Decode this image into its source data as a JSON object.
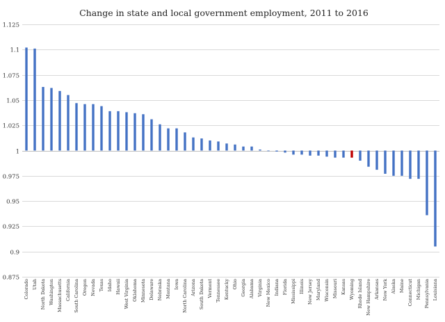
{
  "chart_data": {
    "type": "bar",
    "title": "Change in state and local government employment, 2011 to 2016",
    "xlabel": "",
    "ylabel": "",
    "ylim": [
      0.875,
      1.125
    ],
    "yticks": [
      0.875,
      0.9,
      0.925,
      0.95,
      0.975,
      1,
      1.025,
      1.05,
      1.075,
      1.1,
      1.125
    ],
    "ytick_labels": [
      "0.875",
      "0.9",
      "0.925",
      "0.95",
      "0.975",
      "1",
      "1.025",
      "1.05",
      "1.075",
      "1.1",
      "1.125"
    ],
    "baseline": 1,
    "grid": true,
    "legend": "none",
    "colors": {
      "default": "#4472C4",
      "highlight": "#C00000"
    },
    "highlight": [
      "Wyoming"
    ],
    "categories": [
      "Colorado",
      "Utah",
      "North Dakota",
      "Washington",
      "Massachusetts",
      "California",
      "South Carolina",
      "Oregon",
      "Nevada",
      "Texas",
      "Idaho",
      "Hawaii",
      "West Virginia",
      "Oklahoma",
      "Minnesota",
      "Delaware",
      "Nebraska",
      "Montana",
      "Iowa",
      "North Carolina",
      "Arizona",
      "South Dakota",
      "Vermont",
      "Tennessee",
      "Kentucky",
      "Ohio",
      "Georgia",
      "Alabama",
      "Virginia",
      "New Mexico",
      "Indiana",
      "Florida",
      "Mississippi",
      "Illinois",
      "New Jersey",
      "Maryland",
      "Wisconsin",
      "Missouri",
      "Kansas",
      "Wyoming",
      "Rhode Island",
      "New Hampshire",
      "Arkansas",
      "New York",
      "Alaska",
      "Maine",
      "Connecticut",
      "Michigan",
      "Pennsylvania",
      "Louisiana"
    ],
    "values": [
      1.102,
      1.101,
      1.063,
      1.062,
      1.059,
      1.055,
      1.047,
      1.046,
      1.046,
      1.044,
      1.039,
      1.039,
      1.038,
      1.037,
      1.036,
      1.031,
      1.026,
      1.022,
      1.022,
      1.018,
      1.013,
      1.012,
      1.01,
      1.009,
      1.007,
      1.006,
      1.004,
      1.004,
      1.001,
      1.0,
      0.999,
      0.998,
      0.996,
      0.996,
      0.995,
      0.995,
      0.994,
      0.993,
      0.993,
      0.993,
      0.99,
      0.984,
      0.981,
      0.977,
      0.975,
      0.975,
      0.972,
      0.972,
      0.936,
      0.905
    ]
  }
}
